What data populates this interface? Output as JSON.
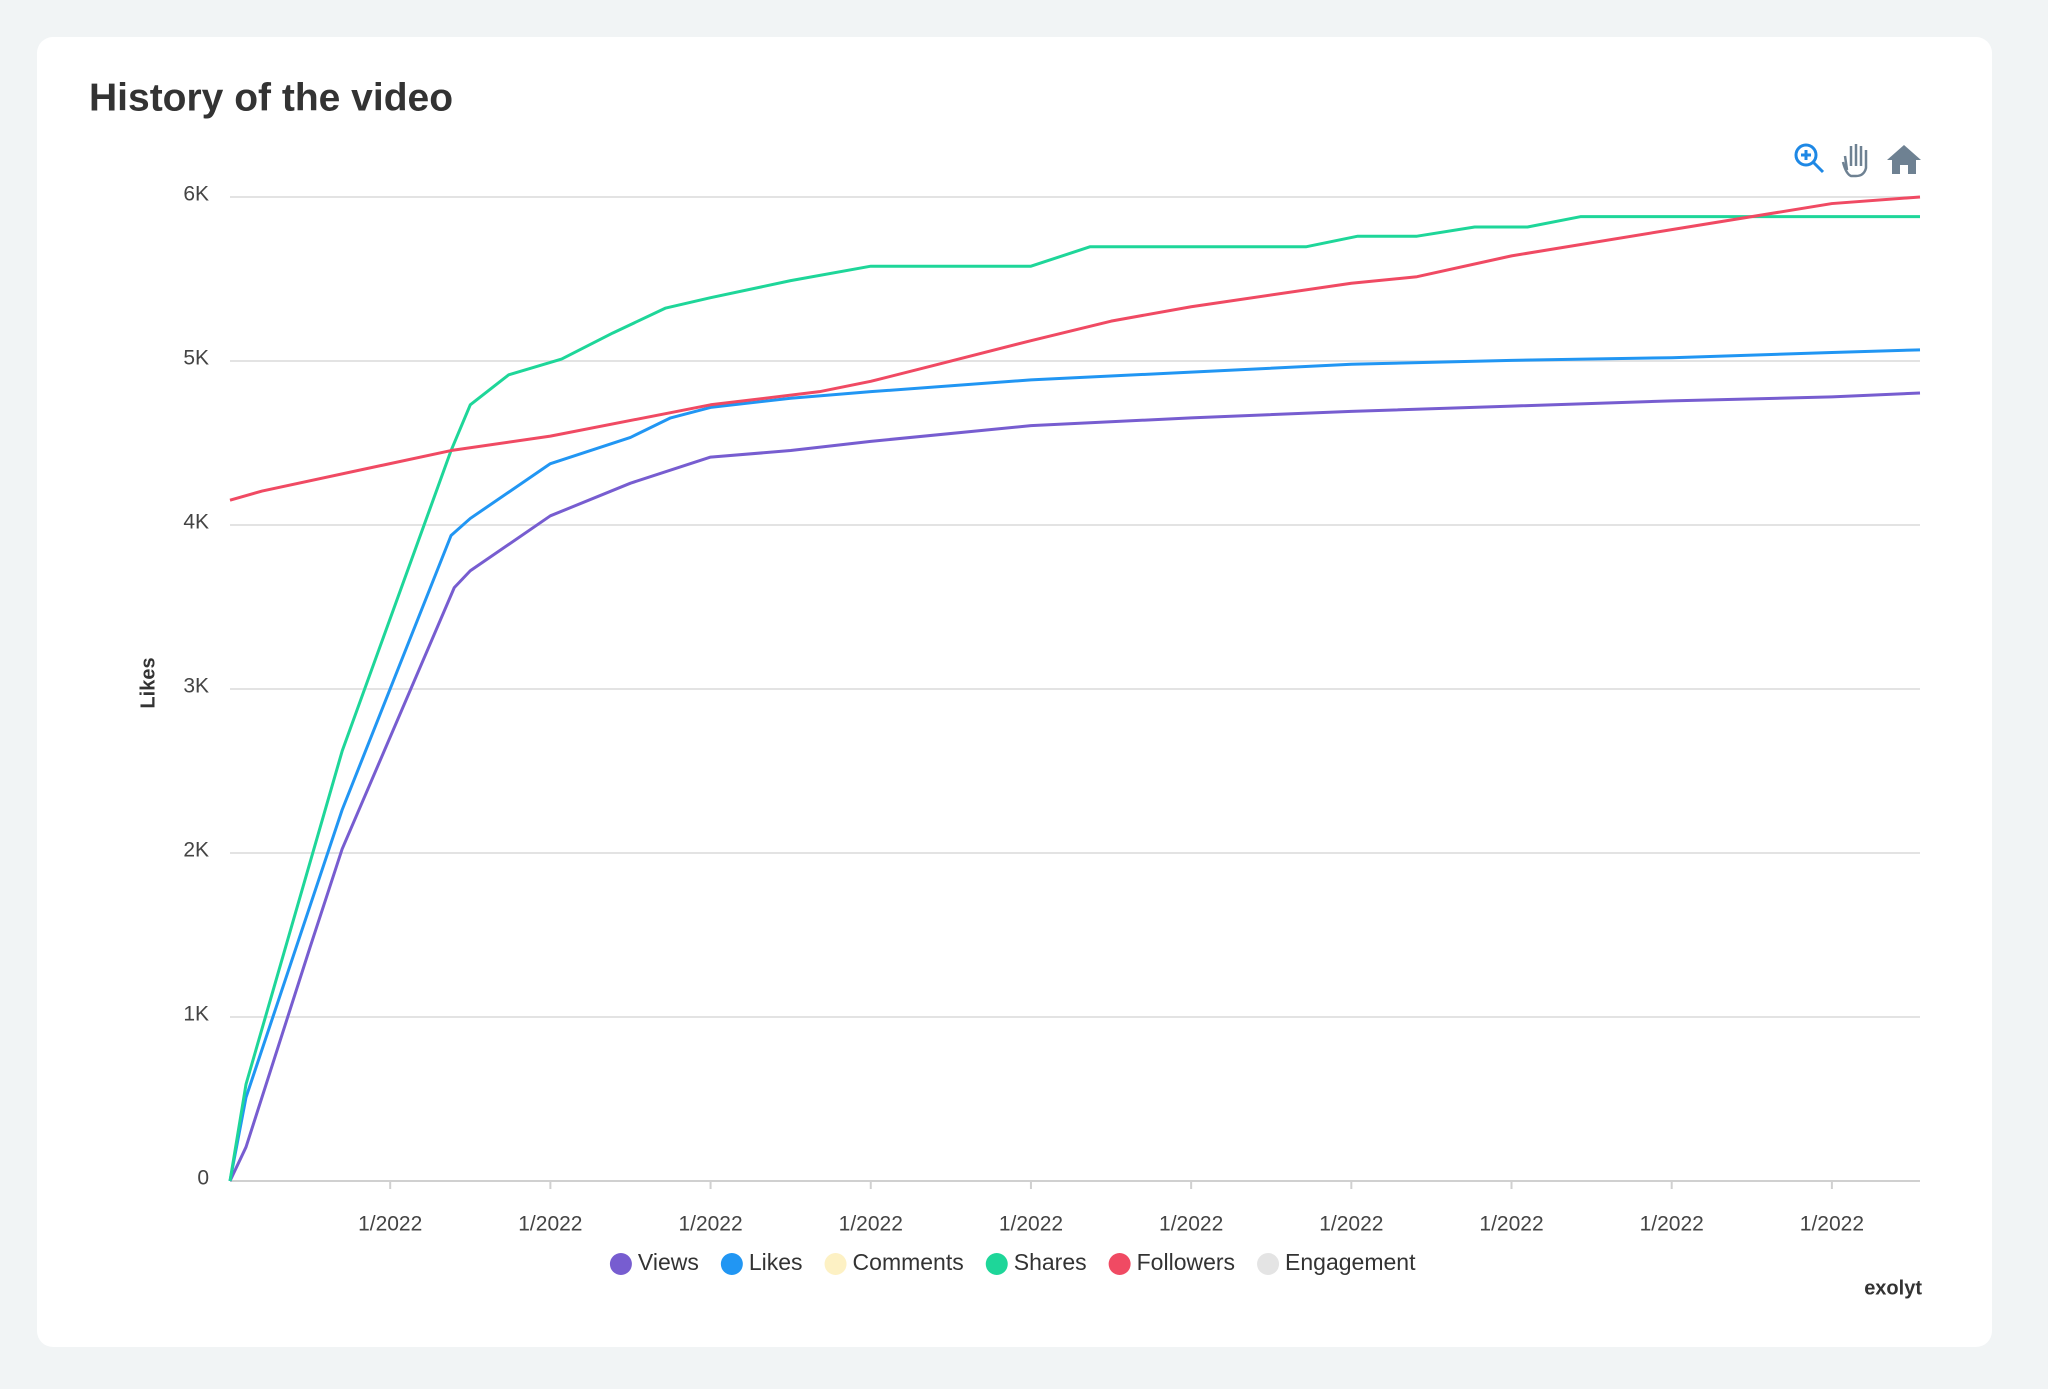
{
  "chart_data": {
    "type": "line",
    "title": "History of the video",
    "ylabel": "Likes",
    "watermark": "exolyt",
    "xlim": [
      0,
      10.55
    ],
    "xticks": [
      {
        "value": 1,
        "label": "1/2022"
      },
      {
        "value": 2,
        "label": "1/2022"
      },
      {
        "value": 3,
        "label": "1/2022"
      },
      {
        "value": 4,
        "label": "1/2022"
      },
      {
        "value": 5,
        "label": "1/2022"
      },
      {
        "value": 6,
        "label": "1/2022"
      },
      {
        "value": 7,
        "label": "1/2022"
      },
      {
        "value": 8,
        "label": "1/2022"
      },
      {
        "value": 9,
        "label": "1/2022"
      },
      {
        "value": 10,
        "label": "1/2022"
      }
    ],
    "ylim": [
      0,
      6000
    ],
    "yticks": [
      0,
      {
        "value": 1000,
        "label": "1K"
      },
      {
        "value": 2000,
        "label": "2K"
      },
      {
        "value": 3000,
        "label": "3K"
      },
      {
        "value": 4000,
        "label": "4K"
      },
      {
        "value": 5000,
        "label": "5K"
      },
      {
        "value": 6000,
        "label": "6K"
      }
    ],
    "grid": true,
    "legend": "bottom",
    "series": [
      {
        "name": "Views",
        "color": "#775dd0",
        "x": [
          0,
          0.1,
          0.5,
          0.7,
          1.4,
          1.5,
          2,
          2.5,
          3,
          3.5,
          4,
          5,
          6,
          7,
          8,
          9,
          10,
          10.55
        ],
        "values": [
          0,
          207,
          1426,
          2024,
          3618,
          3721,
          4056,
          4255,
          4414,
          4454,
          4510,
          4606,
          4653,
          4693,
          4725,
          4757,
          4781,
          4805
        ]
      },
      {
        "name": "Likes",
        "color": "#2196f3",
        "x": [
          0,
          0.1,
          0.7,
          1.38,
          1.5,
          2,
          2.5,
          2.75,
          3,
          3.5,
          4,
          5,
          6,
          7,
          8,
          9,
          10,
          10.55
        ],
        "values": [
          0,
          510,
          2263,
          3936,
          4040,
          4374,
          4534,
          4653,
          4717,
          4773,
          4813,
          4885,
          4932,
          4980,
          5004,
          5020,
          5052,
          5068
        ]
      },
      {
        "name": "Comments",
        "color": "#fdf1c4",
        "hidden": true,
        "x": [],
        "values": []
      },
      {
        "name": "Shares",
        "color": "#1ed699",
        "x": [
          0,
          0.1,
          0.7,
          1.38,
          1.5,
          1.74,
          2.07,
          2.39,
          2.72,
          3,
          3.5,
          4,
          5,
          5.37,
          6.72,
          7.04,
          7.41,
          7.77,
          8.1,
          8.43,
          10.55
        ],
        "values": [
          0,
          590,
          2621,
          4454,
          4733,
          4916,
          5012,
          5171,
          5323,
          5386,
          5490,
          5578,
          5578,
          5697,
          5697,
          5761,
          5761,
          5817,
          5817,
          5880,
          5880
        ]
      },
      {
        "name": "Followers",
        "color": "#f04a63",
        "x": [
          0,
          0.2,
          1.38,
          2,
          2.75,
          3,
          3.68,
          4,
          4.39,
          5,
          5.5,
          6,
          7,
          7.41,
          8,
          9,
          10,
          10.55
        ],
        "values": [
          4151,
          4207,
          4454,
          4542,
          4685,
          4733,
          4813,
          4876,
          4972,
          5124,
          5243,
          5331,
          5474,
          5514,
          5641,
          5801,
          5960,
          6000
        ]
      },
      {
        "name": "Engagement",
        "color": "#e4e4e4",
        "hidden": true,
        "x": [],
        "values": []
      }
    ]
  }
}
